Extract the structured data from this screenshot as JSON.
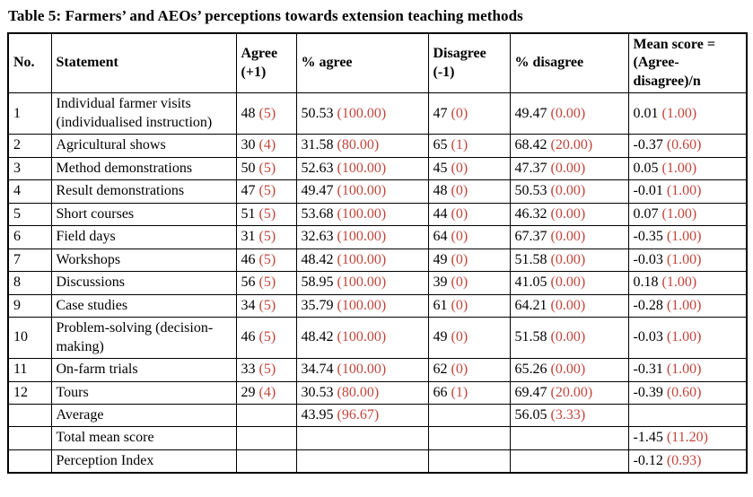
{
  "title": "Table 5: Farmers’ and AEOs’ perceptions towards extension teaching methods",
  "colors": {
    "paren_value": "#c0463c",
    "text": "#000000",
    "border": "#000000",
    "background": "#ffffff"
  },
  "table": {
    "headers": [
      "No.",
      "Statement",
      "Agree (+1)",
      "% agree",
      "Disagree (-1)",
      "% disagree",
      "Mean score = (Agree-disagree)/n"
    ],
    "rows": [
      [
        {
          "t": "1"
        },
        {
          "t": "Individual farmer visits (individualised instruction)"
        },
        {
          "t": "48",
          "r": "(5)"
        },
        {
          "t": "50.53",
          "r": "(100.00)"
        },
        {
          "t": "47",
          "r": "(0)"
        },
        {
          "t": "49.47",
          "r": "(0.00)"
        },
        {
          "t": "0.01",
          "r": "(1.00)"
        }
      ],
      [
        {
          "t": "2"
        },
        {
          "t": "Agricultural shows"
        },
        {
          "t": "30",
          "r": "(4)"
        },
        {
          "t": "31.58",
          "r": "(80.00)"
        },
        {
          "t": "65",
          "r": "(1)"
        },
        {
          "t": "68.42",
          "r": "(20.00)"
        },
        {
          "t": "-0.37",
          "r": "(0.60)"
        }
      ],
      [
        {
          "t": "3"
        },
        {
          "t": "Method demonstrations"
        },
        {
          "t": "50",
          "r": "(5)"
        },
        {
          "t": "52.63",
          "r": "(100.00)"
        },
        {
          "t": "45",
          "r": "(0)"
        },
        {
          "t": "47.37",
          "r": "(0.00)"
        },
        {
          "t": "0.05",
          "r": "(1.00)"
        }
      ],
      [
        {
          "t": "4"
        },
        {
          "t": "Result demonstrations"
        },
        {
          "t": "47",
          "r": "(5)"
        },
        {
          "t": "49.47",
          "r": "(100.00)"
        },
        {
          "t": "48",
          "r": "(0)"
        },
        {
          "t": "50.53",
          "r": "(0.00)"
        },
        {
          "t": "-0.01",
          "r": "(1.00)"
        }
      ],
      [
        {
          "t": "5"
        },
        {
          "t": "Short courses"
        },
        {
          "t": "51",
          "r": "(5)"
        },
        {
          "t": "53.68",
          "r": "(100.00)"
        },
        {
          "t": "44",
          "r": "(0)"
        },
        {
          "t": "46.32",
          "r": "(0.00)"
        },
        {
          "t": "0.07",
          "r": "(1.00)"
        }
      ],
      [
        {
          "t": "6"
        },
        {
          "t": "Field days"
        },
        {
          "t": "31",
          "r": "(5)"
        },
        {
          "t": "32.63",
          "r": "(100.00)"
        },
        {
          "t": "64",
          "r": "(0)"
        },
        {
          "t": "67.37",
          "r": "(0.00)"
        },
        {
          "t": "-0.35",
          "r": "(1.00)"
        }
      ],
      [
        {
          "t": "7"
        },
        {
          "t": "Workshops"
        },
        {
          "t": "46",
          "r": "(5)"
        },
        {
          "t": "48.42",
          "r": "(100.00)"
        },
        {
          "t": "49",
          "r": "(0)"
        },
        {
          "t": "51.58",
          "r": "(0.00)"
        },
        {
          "t": "-0.03",
          "r": "(1.00)"
        }
      ],
      [
        {
          "t": "8"
        },
        {
          "t": "Discussions"
        },
        {
          "t": "56",
          "r": "(5)"
        },
        {
          "t": "58.95",
          "r": "(100.00)"
        },
        {
          "t": "39",
          "r": "(0)"
        },
        {
          "t": "41.05",
          "r": "(0.00)"
        },
        {
          "t": "0.18",
          "r": "(1.00)"
        }
      ],
      [
        {
          "t": "9"
        },
        {
          "t": "Case studies"
        },
        {
          "t": "34",
          "r": "(5)"
        },
        {
          "t": "35.79",
          "r": "(100.00)"
        },
        {
          "t": "61",
          "r": "(0)"
        },
        {
          "t": "64.21",
          "r": "(0.00)"
        },
        {
          "t": "-0.28",
          "r": "(1.00)"
        }
      ],
      [
        {
          "t": "10"
        },
        {
          "t": "Problem-solving (decision-making)"
        },
        {
          "t": "46",
          "r": "(5)"
        },
        {
          "t": "48.42",
          "r": "(100.00)"
        },
        {
          "t": "49",
          "r": "(0)"
        },
        {
          "t": "51.58",
          "r": "(0.00)"
        },
        {
          "t": "-0.03",
          "r": "(1.00)"
        }
      ],
      [
        {
          "t": "11"
        },
        {
          "t": "On-farm trials"
        },
        {
          "t": "33",
          "r": "(5)"
        },
        {
          "t": "34.74",
          "r": "(100.00)"
        },
        {
          "t": "62",
          "r": "(0)"
        },
        {
          "t": "65.26",
          "r": "(0.00)"
        },
        {
          "t": "-0.31",
          "r": "(1.00)"
        }
      ],
      [
        {
          "t": "12"
        },
        {
          "t": "Tours"
        },
        {
          "t": "29",
          "r": "(4)"
        },
        {
          "t": "30.53",
          "r": "(80.00)"
        },
        {
          "t": "66",
          "r": "(1)"
        },
        {
          "t": "69.47",
          "r": "(20.00)"
        },
        {
          "t": "-0.39",
          "r": "(0.60)"
        }
      ],
      [
        {
          "t": ""
        },
        {
          "t": "Average"
        },
        {
          "t": ""
        },
        {
          "t": "43.95",
          "r": "(96.67)"
        },
        {
          "t": ""
        },
        {
          "t": "56.05",
          "r": "(3.33)"
        },
        {
          "t": ""
        }
      ],
      [
        {
          "t": ""
        },
        {
          "t": "Total mean score"
        },
        {
          "t": ""
        },
        {
          "t": ""
        },
        {
          "t": ""
        },
        {
          "t": ""
        },
        {
          "t": "-1.45",
          "r": "(11.20)"
        }
      ],
      [
        {
          "t": ""
        },
        {
          "t": "Perception Index"
        },
        {
          "t": ""
        },
        {
          "t": ""
        },
        {
          "t": ""
        },
        {
          "t": ""
        },
        {
          "t": "-0.12",
          "r": "(0.93)"
        }
      ]
    ]
  }
}
